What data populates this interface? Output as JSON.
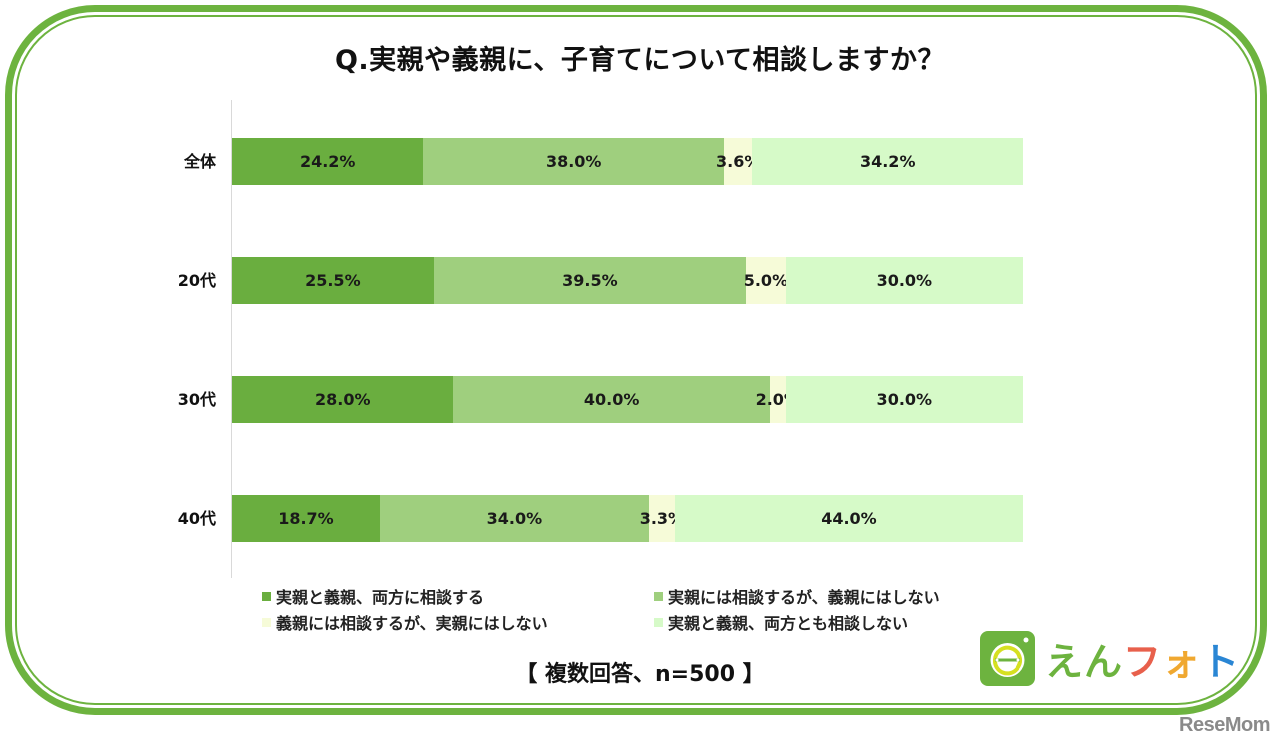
{
  "title": "Q.実親や義親に、子育てについて相談しますか？",
  "note": "【 複数回答、n=500 】",
  "logo": {
    "text_chars": [
      {
        "char": "え",
        "color": "#6db33f"
      },
      {
        "char": "ん",
        "color": "#6db33f"
      },
      {
        "char": "フ",
        "color": "#e8604c"
      },
      {
        "char": "ォ",
        "color": "#f0a830"
      },
      {
        "char": "ト",
        "color": "#2a86d4"
      }
    ],
    "icon": "enphoto-camera-e-icon"
  },
  "watermark": "ReseMom",
  "colors": {
    "frame": "#6db33f",
    "series": [
      "#6aae3f",
      "#9fcf7e",
      "#f6fbd8",
      "#d6fac8"
    ]
  },
  "legend": [
    "実親と義親、両方に相談する",
    "実親には相談するが、義親にはしない",
    "義親には相談するが、実親にはしない",
    "実親と義親、両方とも相談しない"
  ],
  "rows": [
    {
      "label": "全体",
      "values": [
        "24.2%",
        "38.0%",
        "3.6%",
        "34.2%"
      ]
    },
    {
      "label": "20代",
      "values": [
        "25.5%",
        "39.5%",
        "5.0%",
        "30.0%"
      ]
    },
    {
      "label": "30代",
      "values": [
        "28.0%",
        "40.0%",
        "2.0%",
        "30.0%"
      ]
    },
    {
      "label": "40代",
      "values": [
        "18.7%",
        "34.0%",
        "3.3%",
        "44.0%"
      ]
    }
  ],
  "chart_data": {
    "type": "bar",
    "orientation": "horizontal",
    "stacked": true,
    "title": "Q.実親や義親に、子育てについて相談しますか？",
    "subtitle": "【 複数回答、n=500 】",
    "categories": [
      "全体",
      "20代",
      "30代",
      "40代"
    ],
    "series": [
      {
        "name": "実親と義親、両方に相談する",
        "color": "#6aae3f",
        "values": [
          24.2,
          25.5,
          28.0,
          18.7
        ]
      },
      {
        "name": "実親には相談するが、義親にはしない",
        "color": "#9fcf7e",
        "values": [
          38.0,
          39.5,
          40.0,
          34.0
        ]
      },
      {
        "name": "義親には相談するが、実親にはしない",
        "color": "#f6fbd8",
        "values": [
          3.6,
          5.0,
          2.0,
          3.3
        ]
      },
      {
        "name": "実親と義親、両方とも相談しない",
        "color": "#d6fac8",
        "values": [
          34.2,
          30.0,
          30.0,
          44.0
        ]
      }
    ],
    "xlabel": "",
    "ylabel": "",
    "xlim": [
      0,
      100
    ],
    "unit": "%",
    "grid": false,
    "legend_position": "bottom",
    "data_labels": true
  }
}
